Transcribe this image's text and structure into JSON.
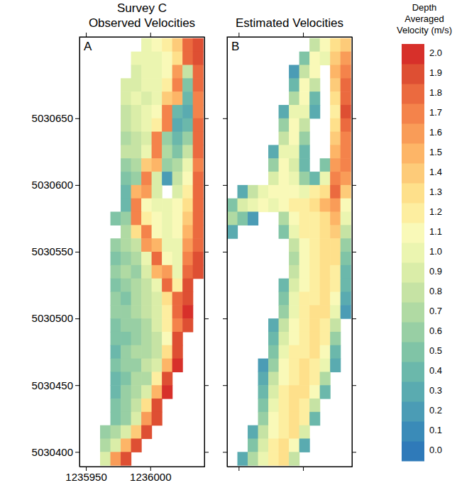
{
  "chart_data": {
    "type": "heatmap",
    "title": "Survey C",
    "panels": [
      {
        "label": "A",
        "title": "Observed Velocities",
        "xlim": [
          1235945,
          1236042
        ],
        "xticks": [
          1235950,
          1236000
        ],
        "ylim": [
          5030389,
          5030711
        ],
        "yticks": [
          5030400,
          5030450,
          5030500,
          5030550,
          5030600,
          5030650
        ],
        "x": [
          1235949,
          1235957,
          1235965,
          1235973,
          1235981,
          1235989,
          1235997,
          1236005,
          1236013,
          1236021,
          1236029,
          1236037
        ],
        "y": [
          5030705,
          5030695,
          5030685,
          5030675,
          5030665,
          5030655,
          5030645,
          5030635,
          5030625,
          5030615,
          5030605,
          5030595,
          5030585,
          5030575,
          5030565,
          5030555,
          5030545,
          5030535,
          5030525,
          5030515,
          5030505,
          5030495,
          5030485,
          5030475,
          5030465,
          5030455,
          5030445,
          5030435,
          5030425,
          5030415,
          5030405,
          5030395
        ],
        "values": [
          [
            null,
            null,
            null,
            null,
            null,
            null,
            1.0,
            1.1,
            1.2,
            1.4,
            1.8,
            1.9
          ],
          [
            null,
            null,
            null,
            null,
            null,
            1.0,
            1.0,
            1.0,
            1.1,
            1.3,
            1.8,
            1.9
          ],
          [
            null,
            null,
            null,
            null,
            null,
            0.9,
            1.0,
            1.0,
            1.1,
            1.6,
            0.8,
            1.8
          ],
          [
            null,
            null,
            null,
            null,
            0.9,
            0.9,
            1.0,
            1.0,
            1.2,
            1.7,
            0.5,
            1.8
          ],
          [
            null,
            null,
            null,
            null,
            0.9,
            1.0,
            0.9,
            1.0,
            1.4,
            1.5,
            0.4,
            1.7
          ],
          [
            null,
            null,
            null,
            null,
            0.8,
            0.9,
            1.0,
            1.1,
            1.7,
            0.4,
            0.3,
            1.7
          ],
          [
            null,
            null,
            null,
            null,
            0.8,
            0.9,
            1.0,
            1.2,
            1.7,
            0.3,
            0.4,
            1.8
          ],
          [
            null,
            null,
            null,
            null,
            0.7,
            0.8,
            0.9,
            1.7,
            0.6,
            0.4,
            0.6,
            1.8
          ],
          [
            null,
            null,
            null,
            null,
            0.8,
            0.8,
            1.0,
            1.7,
            0.7,
            0.5,
            0.8,
            1.8
          ],
          [
            null,
            null,
            null,
            null,
            0.6,
            0.7,
            1.4,
            1.5,
            0.6,
            0.7,
            1.0,
            1.7
          ],
          [
            null,
            null,
            null,
            null,
            0.5,
            0.6,
            1.7,
            0.9,
            0.2,
            0.8,
            1.1,
            1.8
          ],
          [
            null,
            null,
            null,
            null,
            0.4,
            1.5,
            1.6,
            0.9,
            null,
            0.9,
            1.2,
            1.8
          ],
          [
            null,
            null,
            null,
            null,
            0.4,
            1.7,
            1.1,
            1.0,
            1.0,
            1.1,
            1.3,
            1.8
          ],
          [
            null,
            null,
            null,
            0.5,
            0.6,
            1.7,
            1.2,
            1.1,
            1.0,
            1.1,
            1.4,
            1.8
          ],
          [
            null,
            null,
            null,
            null,
            0.7,
            1.3,
            1.7,
            1.1,
            1.0,
            1.1,
            1.5,
            1.8
          ],
          [
            null,
            null,
            null,
            0.6,
            0.7,
            0.8,
            1.6,
            1.5,
            1.0,
            1.0,
            1.6,
            1.8
          ],
          [
            null,
            null,
            null,
            0.5,
            0.6,
            0.7,
            1.0,
            1.8,
            1.1,
            1.0,
            1.7,
            1.9
          ],
          [
            null,
            null,
            null,
            0.6,
            0.7,
            0.6,
            0.9,
            1.5,
            1.6,
            1.0,
            1.8,
            1.9
          ],
          [
            null,
            null,
            null,
            0.5,
            0.6,
            0.7,
            0.8,
            1.0,
            1.8,
            1.2,
            1.9,
            null
          ],
          [
            null,
            null,
            null,
            0.6,
            0.5,
            0.7,
            0.8,
            0.9,
            1.3,
            1.8,
            1.9,
            null
          ],
          [
            null,
            null,
            null,
            0.6,
            0.6,
            0.7,
            0.8,
            0.9,
            1.2,
            1.8,
            2.0,
            null
          ],
          [
            null,
            null,
            null,
            0.5,
            0.6,
            0.6,
            0.7,
            0.9,
            1.2,
            1.7,
            1.9,
            null
          ],
          [
            null,
            null,
            null,
            0.5,
            0.5,
            0.6,
            0.7,
            0.8,
            1.1,
            1.9,
            null,
            null
          ],
          [
            null,
            null,
            null,
            0.4,
            0.6,
            0.7,
            0.7,
            0.8,
            1.3,
            1.9,
            null,
            null
          ],
          [
            null,
            null,
            null,
            0.5,
            0.6,
            0.6,
            0.8,
            0.9,
            1.5,
            2.0,
            null,
            null
          ],
          [
            null,
            null,
            null,
            0.4,
            0.5,
            0.7,
            0.7,
            1.2,
            1.9,
            null,
            null,
            null
          ],
          [
            null,
            null,
            null,
            0.4,
            0.6,
            0.7,
            0.9,
            1.5,
            2.0,
            null,
            null,
            null
          ],
          [
            null,
            null,
            null,
            0.5,
            0.6,
            0.8,
            1.3,
            1.9,
            null,
            null,
            null,
            null
          ],
          [
            null,
            null,
            null,
            0.5,
            0.6,
            0.9,
            1.6,
            1.9,
            null,
            null,
            null,
            null
          ],
          [
            null,
            null,
            0.6,
            0.7,
            0.9,
            1.4,
            1.9,
            null,
            null,
            null,
            null,
            null
          ],
          [
            null,
            null,
            0.7,
            0.9,
            1.5,
            1.9,
            null,
            null,
            null,
            null,
            null,
            null
          ],
          [
            null,
            null,
            0.9,
            1.6,
            1.9,
            null,
            null,
            null,
            null,
            null,
            null,
            null
          ]
        ]
      },
      {
        "label": "B",
        "title": "Estimated Velocities",
        "xlim": [
          1235941,
          1236038
        ],
        "xticks": [
          1235950,
          1236000
        ],
        "ylim": [
          5030389,
          5030711
        ],
        "yticks": [
          5030400,
          5030450,
          5030500,
          5030550,
          5030600,
          5030650
        ],
        "tick_labels": false,
        "x": [
          1235945,
          1235953,
          1235961,
          1235969,
          1235977,
          1235985,
          1235993,
          1236001,
          1236009,
          1236017,
          1236025,
          1236033
        ],
        "y": [
          5030705,
          5030695,
          5030685,
          5030675,
          5030665,
          5030655,
          5030645,
          5030635,
          5030625,
          5030615,
          5030605,
          5030595,
          5030585,
          5030575,
          5030565,
          5030555,
          5030545,
          5030535,
          5030525,
          5030515,
          5030505,
          5030495,
          5030485,
          5030475,
          5030465,
          5030455,
          5030445,
          5030435,
          5030425,
          5030415,
          5030405,
          5030395
        ],
        "values": [
          [
            null,
            null,
            null,
            null,
            null,
            null,
            null,
            null,
            0.8,
            1.1,
            1.3,
            1.4
          ],
          [
            null,
            null,
            null,
            null,
            null,
            null,
            null,
            0.5,
            1.1,
            1.0,
            1.4,
            1.6
          ],
          [
            null,
            null,
            null,
            null,
            null,
            null,
            0.2,
            0.8,
            1.1,
            null,
            1.5,
            1.7
          ],
          [
            null,
            null,
            null,
            null,
            null,
            null,
            0.4,
            1.1,
            0.8,
            null,
            1.4,
            1.8
          ],
          [
            null,
            null,
            null,
            null,
            null,
            null,
            0.7,
            1.1,
            0.4,
            null,
            1.3,
            1.8
          ],
          [
            null,
            null,
            null,
            null,
            null,
            0.3,
            1.0,
            1.0,
            0.3,
            null,
            1.2,
            1.9
          ],
          [
            null,
            null,
            null,
            null,
            null,
            0.6,
            1.1,
            0.8,
            null,
            null,
            1.3,
            1.8
          ],
          [
            null,
            null,
            null,
            null,
            null,
            0.8,
            1.1,
            0.6,
            null,
            null,
            1.4,
            1.7
          ],
          [
            null,
            null,
            null,
            null,
            0.3,
            1.0,
            1.0,
            0.4,
            null,
            null,
            1.5,
            1.7
          ],
          [
            null,
            null,
            null,
            null,
            0.6,
            1.1,
            0.9,
            0.4,
            null,
            0.5,
            1.6,
            1.7
          ],
          [
            null,
            null,
            null,
            null,
            0.9,
            1.1,
            1.0,
            0.6,
            0.4,
            1.0,
            1.7,
            1.6
          ],
          [
            null,
            0.3,
            0.8,
            1.0,
            1.1,
            1.1,
            1.1,
            1.0,
            1.2,
            1.3,
            1.8,
            1.4
          ],
          [
            0.5,
            0.9,
            1.0,
            1.1,
            1.0,
            1.1,
            1.2,
            1.2,
            1.3,
            1.5,
            1.6,
            1.1
          ],
          [
            0.7,
            0.5,
            0.2,
            null,
            null,
            0.7,
            1.1,
            1.2,
            1.2,
            1.3,
            1.5,
            1.0
          ],
          [
            0.3,
            null,
            null,
            null,
            null,
            0.5,
            1.0,
            1.2,
            1.2,
            1.3,
            1.4,
            0.8
          ],
          [
            null,
            null,
            null,
            null,
            null,
            null,
            0.8,
            1.1,
            1.2,
            1.3,
            1.3,
            0.6
          ],
          [
            null,
            null,
            null,
            null,
            null,
            null,
            0.7,
            1.1,
            1.2,
            1.3,
            1.3,
            0.5
          ],
          [
            null,
            null,
            null,
            null,
            null,
            null,
            0.8,
            1.1,
            1.2,
            1.3,
            1.2,
            0.4
          ],
          [
            null,
            null,
            null,
            null,
            null,
            0.4,
            0.9,
            1.1,
            1.2,
            1.3,
            1.2,
            0.4
          ],
          [
            null,
            null,
            null,
            null,
            null,
            0.5,
            1.0,
            1.2,
            1.2,
            1.3,
            1.1,
            0.3
          ],
          [
            null,
            null,
            null,
            null,
            null,
            0.6,
            1.0,
            1.2,
            1.3,
            1.3,
            1.0,
            0.2
          ],
          [
            null,
            null,
            null,
            null,
            0.3,
            0.8,
            1.1,
            1.2,
            1.3,
            1.2,
            0.8,
            null
          ],
          [
            null,
            null,
            null,
            null,
            0.4,
            0.9,
            1.1,
            1.2,
            1.3,
            1.2,
            0.6,
            null
          ],
          [
            null,
            null,
            null,
            null,
            0.5,
            1.0,
            1.2,
            1.2,
            1.3,
            1.1,
            0.4,
            null
          ],
          [
            null,
            null,
            null,
            0.2,
            0.6,
            1.1,
            1.2,
            1.3,
            1.2,
            1.0,
            0.3,
            null
          ],
          [
            null,
            null,
            null,
            0.3,
            0.8,
            1.1,
            1.2,
            1.3,
            1.2,
            0.7,
            null,
            null
          ],
          [
            null,
            null,
            null,
            0.4,
            0.9,
            1.2,
            1.3,
            1.3,
            1.1,
            0.4,
            null,
            null
          ],
          [
            null,
            null,
            null,
            0.5,
            1.0,
            1.2,
            1.3,
            1.2,
            0.8,
            null,
            null,
            null
          ],
          [
            null,
            null,
            null,
            0.6,
            1.1,
            1.2,
            1.3,
            1.2,
            0.4,
            null,
            null,
            null
          ],
          [
            null,
            null,
            0.3,
            0.8,
            1.1,
            1.2,
            1.3,
            0.9,
            null,
            null,
            null,
            null
          ],
          [
            null,
            null,
            0.5,
            0.9,
            1.2,
            1.3,
            1.1,
            0.3,
            null,
            null,
            null,
            null
          ],
          [
            null,
            0.3,
            0.7,
            1.0,
            1.2,
            1.3,
            0.8,
            null,
            null,
            null,
            null,
            null
          ]
        ]
      }
    ],
    "colorbar": {
      "title": "Depth Averaged Velocity (m/s)",
      "range": [
        -0.05,
        2.05
      ],
      "ticks": [
        {
          "value": 0,
          "label": "0.0"
        },
        0.1,
        0.2,
        0.3,
        0.4,
        0.5,
        0.6,
        0.7,
        0.8,
        0.9,
        {
          "value": 1,
          "label": "1.0"
        },
        1.1,
        1.2,
        1.3,
        1.4,
        1.5,
        1.6,
        1.7,
        1.8,
        1.9,
        {
          "value": 2,
          "label": "2.0"
        }
      ],
      "colors": [
        "#2f7ab9",
        "#3a8bb8",
        "#4b9cb5",
        "#5aabb0",
        "#6bb8ab",
        "#80c4a6",
        "#98cfa4",
        "#b0daa3",
        "#c6e3a4",
        "#daeda8",
        "#ebf5b0",
        "#f9f9b8",
        "#fdeea0",
        "#fee08b",
        "#fdcb79",
        "#fdb567",
        "#f99c58",
        "#f4834b",
        "#eb6a3f",
        "#de4f33",
        "#d7302a"
      ]
    }
  }
}
